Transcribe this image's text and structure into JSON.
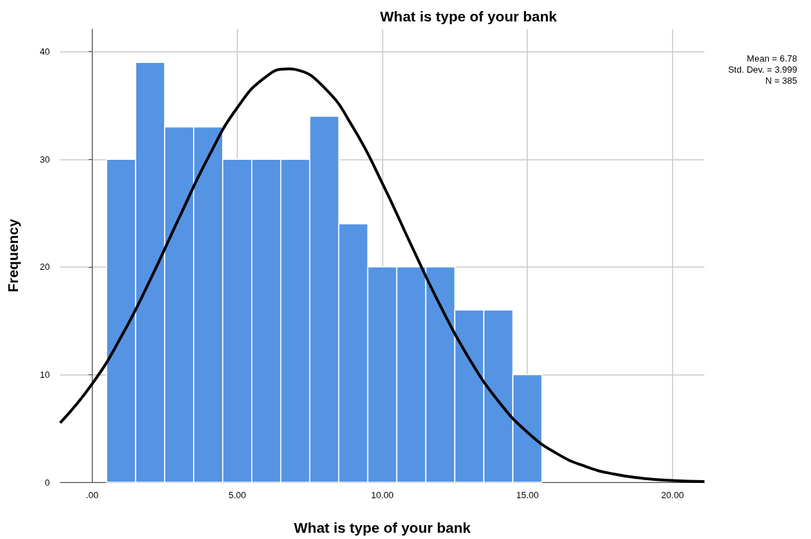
{
  "chart_data": {
    "type": "histogram",
    "title": "What is type of your bank",
    "xlabel": "What is type of your bank",
    "ylabel": "Frequency",
    "annotations": [
      "Mean = 6.78",
      "Std. Dev. = 3.999",
      "N = 385"
    ],
    "xlim": [
      -1.1,
      21.1
    ],
    "xticks": [
      {
        "value": 0,
        "label": ".00"
      },
      {
        "value": 5,
        "label": "5.00"
      },
      {
        "value": 10,
        "label": "10.00"
      },
      {
        "value": 15,
        "label": "15.00"
      },
      {
        "value": 20,
        "label": "20.00"
      }
    ],
    "ylim": [
      0,
      42.1
    ],
    "yticks": [
      0,
      10,
      20,
      30,
      40
    ],
    "grid": true,
    "series": [
      {
        "color": "#5594e3",
        "bins": [
          0.5,
          1.5,
          2.5,
          3.5,
          4.5,
          5.5,
          6.5,
          7.5,
          8.5,
          9.5,
          10.5,
          11.5,
          12.5,
          13.5,
          14.5,
          15.5
        ],
        "values": [
          30,
          39,
          33,
          33,
          30,
          30,
          30,
          34,
          24,
          20,
          20,
          20,
          16,
          16,
          10
        ]
      },
      {
        "type": "line",
        "color": "#000000",
        "marker": "none",
        "line_style": "solid",
        "x": [
          -1.1,
          0,
          1,
          2,
          3,
          4,
          5,
          6,
          6.78,
          7,
          8,
          9,
          10,
          11,
          12,
          13,
          14,
          15,
          16,
          17,
          18,
          19,
          20,
          21.1
        ],
        "values": [
          5.52,
          9.13,
          13.51,
          18.8,
          24.57,
          30.17,
          34.79,
          37.69,
          38.41,
          38.35,
          36.66,
          32.93,
          27.78,
          22.01,
          16.39,
          11.46,
          7.53,
          4.64,
          2.69,
          1.47,
          0.75,
          0.36,
          0.16,
          0.06
        ]
      }
    ]
  }
}
